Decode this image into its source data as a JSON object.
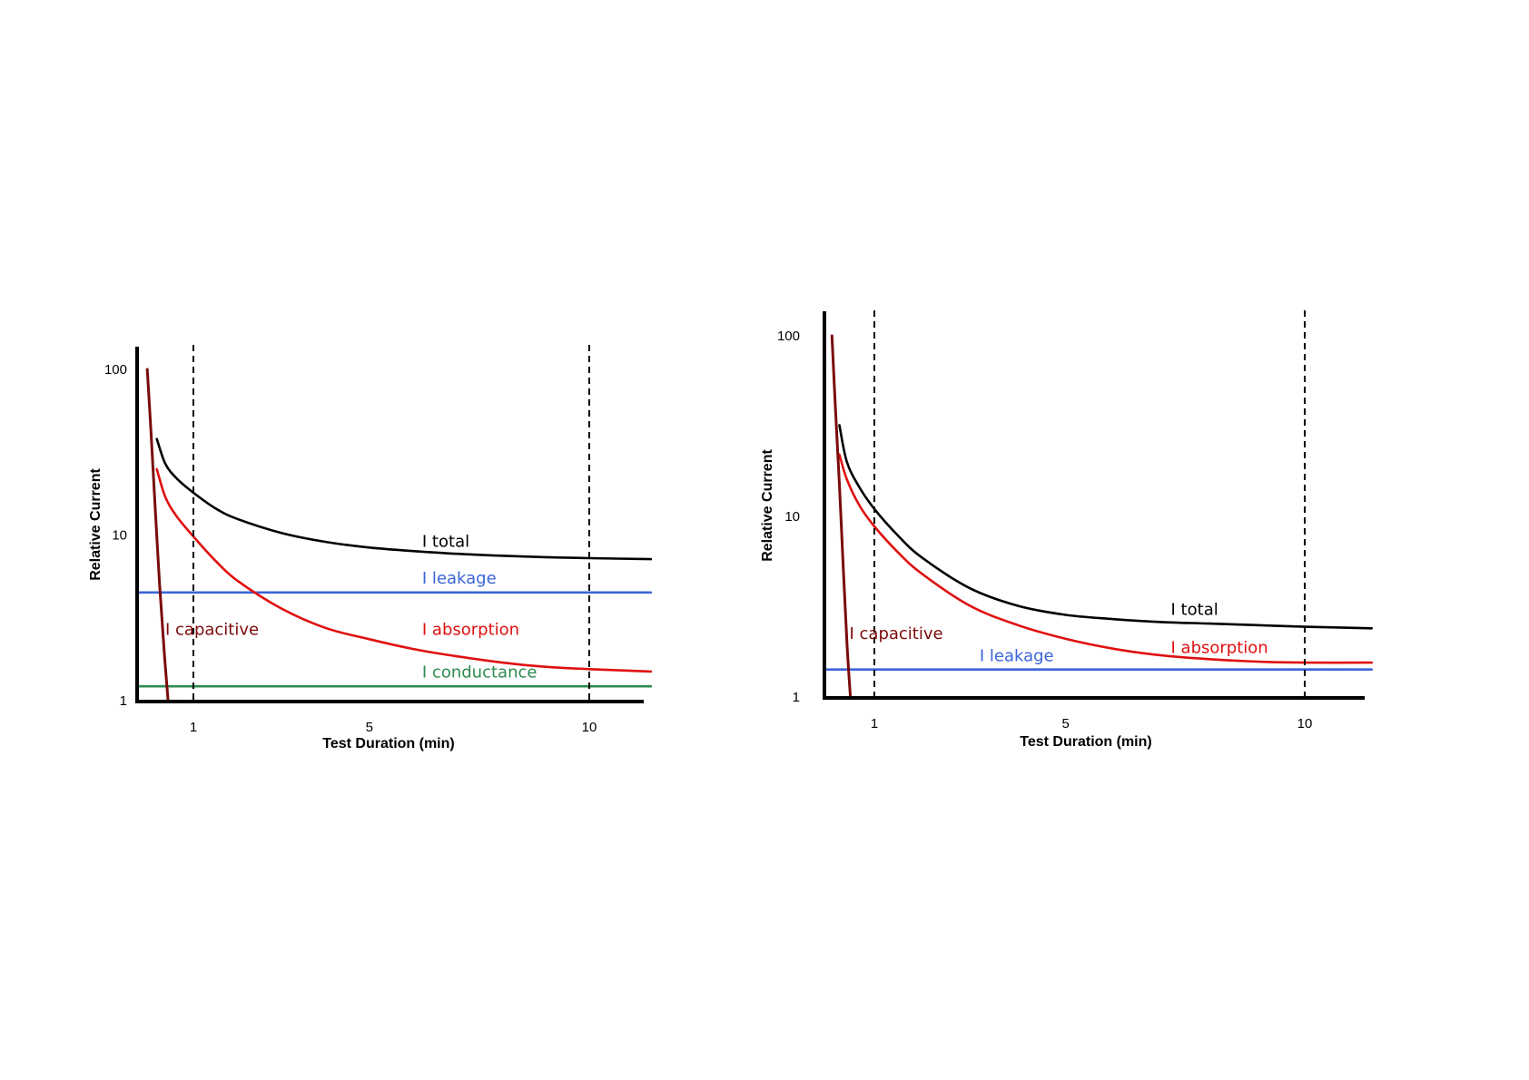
{
  "colors": {
    "axis": "#000000",
    "total": "#000000",
    "absorption": "#e01010",
    "capacitive": "#7a0a0a",
    "leakage": "#3b64d8",
    "conductance": "#2e8b4e",
    "marker": "#000000",
    "background": "#ffffff"
  },
  "chart_data": [
    {
      "type": "line",
      "xlabel": "Test Duration (min)",
      "ylabel": "Relative Current",
      "y_scale": "log",
      "ylim": [
        1,
        100
      ],
      "y_ticks": [
        {
          "value": 1,
          "label": "1"
        },
        {
          "value": 10,
          "label": "10"
        },
        {
          "value": 100,
          "label": "100"
        }
      ],
      "xlim": [
        0,
        11.4
      ],
      "x_ticks": [
        {
          "value": 1,
          "label": "1"
        },
        {
          "value": 5,
          "label": "5"
        },
        {
          "value": 10,
          "label": "10"
        }
      ],
      "vertical_markers": [
        1,
        10
      ],
      "grid": false,
      "series": [
        {
          "name": "I total",
          "color_key": "total",
          "x": [
            0.35,
            0.5,
            0.7,
            1.0,
            1.5,
            2.0,
            3.0,
            4.0,
            5.0,
            6.0,
            7.0,
            8.0,
            9.0,
            10.0,
            11.4
          ],
          "y": [
            38,
            27,
            22,
            18,
            14.5,
            12.5,
            10.3,
            9.1,
            8.4,
            8.0,
            7.7,
            7.5,
            7.35,
            7.25,
            7.15
          ]
        },
        {
          "name": "I absorption",
          "color_key": "absorption",
          "x": [
            0.35,
            0.5,
            0.7,
            1.0,
            1.5,
            2.0,
            3.0,
            4.0,
            5.0,
            6.0,
            7.0,
            8.0,
            9.0,
            10.0,
            11.4
          ],
          "y": [
            25,
            17,
            13,
            9.8,
            7.0,
            5.3,
            3.6,
            2.75,
            2.35,
            2.05,
            1.85,
            1.7,
            1.6,
            1.55,
            1.5
          ]
        },
        {
          "name": "I capacitive",
          "color_key": "capacitive",
          "x": [
            0.18,
            0.25,
            0.32,
            0.4,
            0.48,
            0.55
          ],
          "y": [
            100,
            40,
            15,
            5,
            2,
            1
          ]
        },
        {
          "name": "I leakage",
          "color_key": "leakage",
          "x": [
            0,
            11.4
          ],
          "y": [
            4.5,
            4.5
          ]
        },
        {
          "name": "I conductance",
          "color_key": "conductance",
          "x": [
            0,
            11.4
          ],
          "y": [
            1.22,
            1.22
          ]
        }
      ],
      "annotations": [
        {
          "text": "I total",
          "x": 6.2,
          "y": 8.5,
          "color_key": "total"
        },
        {
          "text": "I leakage",
          "x": 6.2,
          "y": 5.1,
          "color_key": "leakage"
        },
        {
          "text": "I capacitive",
          "x": 0.5,
          "y": 2.5,
          "color_key": "capacitive"
        },
        {
          "text": "I absorption",
          "x": 6.2,
          "y": 2.5,
          "color_key": "absorption"
        },
        {
          "text": "I conductance",
          "x": 6.2,
          "y": 1.38,
          "color_key": "conductance"
        }
      ]
    },
    {
      "type": "line",
      "xlabel": "Test Duration (min)",
      "ylabel": "Relative Current",
      "y_scale": "log",
      "ylim": [
        1,
        100
      ],
      "y_ticks": [
        {
          "value": 1,
          "label": "1"
        },
        {
          "value": 10,
          "label": "10"
        },
        {
          "value": 100,
          "label": "100"
        }
      ],
      "xlim": [
        0,
        11.4
      ],
      "x_ticks": [
        {
          "value": 1,
          "label": "1"
        },
        {
          "value": 5,
          "label": "5"
        },
        {
          "value": 10,
          "label": "10"
        }
      ],
      "vertical_markers": [
        1,
        10
      ],
      "grid": false,
      "series": [
        {
          "name": "I total",
          "color_key": "total",
          "x": [
            0.3,
            0.45,
            0.7,
            1.0,
            1.5,
            2.0,
            3.0,
            4.0,
            5.0,
            6.0,
            7.0,
            8.0,
            9.0,
            10.0,
            11.4
          ],
          "y": [
            32,
            20,
            14.5,
            11.0,
            7.8,
            5.9,
            4.0,
            3.2,
            2.85,
            2.7,
            2.6,
            2.55,
            2.5,
            2.45,
            2.4
          ]
        },
        {
          "name": "I absorption",
          "color_key": "absorption",
          "x": [
            0.3,
            0.45,
            0.7,
            1.0,
            1.5,
            2.0,
            3.0,
            4.0,
            5.0,
            6.0,
            7.0,
            8.0,
            9.0,
            10.0,
            11.4
          ],
          "y": [
            22,
            16,
            11.5,
            8.8,
            6.3,
            4.8,
            3.2,
            2.5,
            2.1,
            1.85,
            1.7,
            1.62,
            1.57,
            1.55,
            1.55
          ]
        },
        {
          "name": "I capacitive",
          "color_key": "capacitive",
          "x": [
            0.15,
            0.22,
            0.3,
            0.38,
            0.45,
            0.52
          ],
          "y": [
            100,
            40,
            15,
            5,
            2,
            1
          ]
        },
        {
          "name": "I leakage",
          "color_key": "leakage",
          "x": [
            0,
            11.4
          ],
          "y": [
            1.42,
            1.42
          ]
        }
      ],
      "annotations": [
        {
          "text": "I total",
          "x": 7.2,
          "y": 2.85,
          "color_key": "total"
        },
        {
          "text": "I capacitive",
          "x": 0.5,
          "y": 2.1,
          "color_key": "capacitive"
        },
        {
          "text": "I absorption",
          "x": 7.2,
          "y": 1.75,
          "color_key": "absorption"
        },
        {
          "text": "I leakage",
          "x": 3.2,
          "y": 1.58,
          "color_key": "leakage"
        }
      ]
    }
  ]
}
